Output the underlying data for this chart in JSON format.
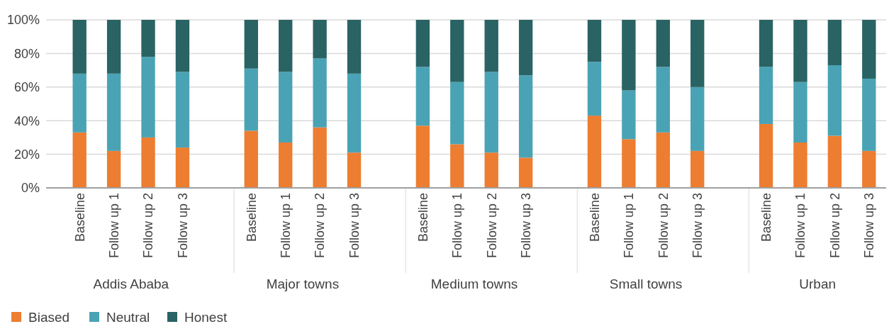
{
  "chart_data": {
    "type": "bar",
    "stacked": true,
    "grid": "y",
    "legend": "bottom left",
    "categories": [
      "Baseline",
      "Follow up 1",
      "Follow up 2",
      "Follow up 3",
      null,
      "Baseline",
      "Follow up 1",
      "Follow up 2",
      "Follow up 3",
      null,
      "Baseline",
      "Follow up 1",
      "Follow up 2",
      "Follow up 3",
      null,
      "Baseline",
      "Follow up 1",
      "Follow up 2",
      "Follow up 3",
      null,
      "Baseline",
      "Follow up 1",
      "Follow up 2",
      "Follow up 3"
    ],
    "annotations": [
      "Addis Ababa",
      "Major towns",
      "Medium towns",
      "Small towns",
      "Urban"
    ],
    "ylim": [
      0,
      100
    ],
    "yticks": [
      {
        "value": 0,
        "label": "0%"
      },
      {
        "value": 20,
        "label": "20%"
      },
      {
        "value": 40,
        "label": "40%"
      },
      {
        "value": 60,
        "label": "60%"
      },
      {
        "value": 80,
        "label": "80%"
      },
      {
        "value": 100,
        "label": "100%"
      }
    ],
    "series": [
      {
        "name": "Biased",
        "color": "#ed7d31",
        "values": [
          33,
          22,
          30,
          24,
          null,
          34,
          27,
          36,
          21,
          null,
          37,
          26,
          21,
          18,
          null,
          43,
          29,
          33,
          22,
          null,
          38,
          27,
          31,
          22
        ]
      },
      {
        "name": "Neutral",
        "color": "#4aa3b5",
        "values": [
          35,
          46,
          48,
          45,
          null,
          37,
          42,
          41,
          47,
          null,
          35,
          37,
          48,
          49,
          null,
          32,
          29,
          39,
          38,
          null,
          34,
          36,
          42,
          43
        ]
      },
      {
        "name": "Honest",
        "color": "#2a6364",
        "values": [
          32,
          32,
          22,
          31,
          null,
          29,
          31,
          23,
          32,
          null,
          28,
          37,
          31,
          33,
          null,
          25,
          42,
          28,
          40,
          null,
          28,
          37,
          27,
          35
        ]
      }
    ]
  }
}
